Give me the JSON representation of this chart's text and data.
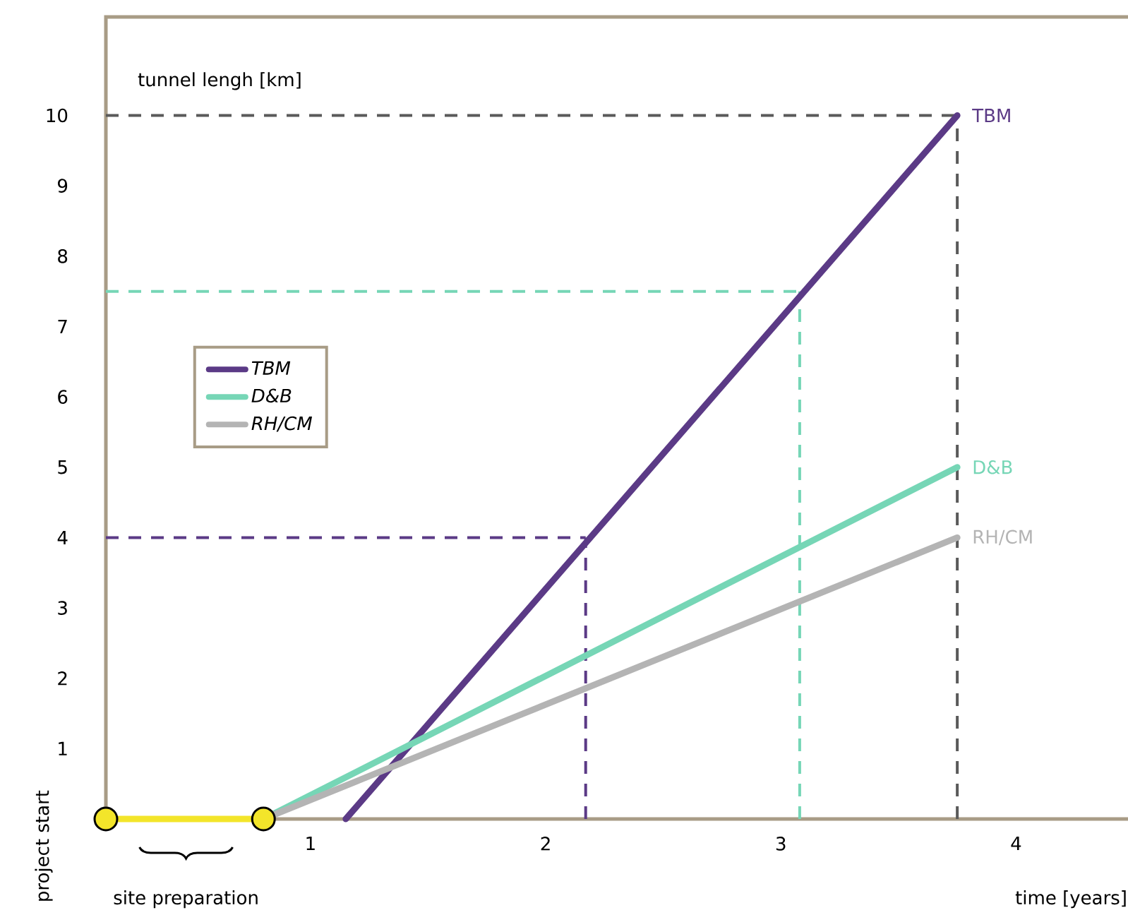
{
  "chart_data": {
    "type": "line",
    "xlabel": "time [years]",
    "ylabel": "tunnel lengh [km]",
    "xlim": [
      0.13,
      4.5
    ],
    "ylim": [
      0,
      11.4
    ],
    "xticks": [
      1,
      2,
      3,
      4
    ],
    "yticks": [
      1,
      2,
      3,
      4,
      5,
      6,
      7,
      8,
      9,
      10
    ],
    "grid": false,
    "legend": "left",
    "line_style": "solid",
    "series": [
      {
        "name": "TBM",
        "color": "#5b3a86",
        "x": [
          1.15,
          3.75
        ],
        "values": [
          0,
          10
        ]
      },
      {
        "name": "D&B",
        "color": "#76d6b6",
        "x": [
          0.8,
          3.75
        ],
        "values": [
          0,
          5
        ]
      },
      {
        "name": "RH/CM",
        "color": "#b4b4b4",
        "x": [
          0.8,
          3.75
        ],
        "values": [
          0,
          4
        ]
      },
      {
        "color": "#f3e52a",
        "marker": "circle",
        "x": [
          0.13,
          0.8
        ],
        "values": [
          0,
          0
        ]
      }
    ],
    "ref_lines": [
      {
        "axis": "y",
        "value": 10,
        "color": "#5a5a5a",
        "line_style": "dashed"
      },
      {
        "axis": "y",
        "value": 7.5,
        "color": "#76d6b6",
        "line_style": "dashed"
      },
      {
        "axis": "y",
        "value": 4,
        "color": "#5b3a86",
        "line_style": "dashed"
      },
      {
        "axis": "x",
        "value": 3.75,
        "color": "#5a5a5a",
        "line_style": "dashed"
      },
      {
        "axis": "x",
        "value": 3.08,
        "color": "#76d6b6",
        "line_style": "dashed"
      },
      {
        "axis": "x",
        "value": 2.17,
        "color": "#5b3a86",
        "line_style": "dashed"
      }
    ],
    "annotations": [
      {
        "text": "project start",
        "x": 0.13,
        "y": 0
      },
      "site preparation"
    ]
  }
}
